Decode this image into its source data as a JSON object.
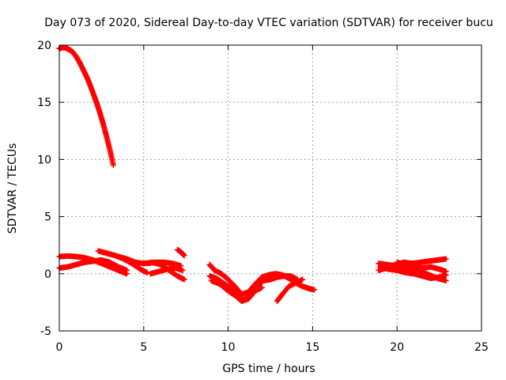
{
  "chart_data": {
    "type": "scatter",
    "title": "Day 073 of 2020, Sidereal Day-to-day VTEC variation (SDTVAR) for receiver bucu",
    "xlabel": "GPS time / hours",
    "ylabel": "SDTVAR / TECUs",
    "xlim": [
      0,
      25
    ],
    "ylim": [
      -5,
      20
    ],
    "xticks": [
      0,
      5,
      10,
      15,
      20,
      25
    ],
    "yticks": [
      -5,
      0,
      5,
      10,
      15,
      20
    ],
    "grid": true,
    "marker": "plus",
    "series_color": "#ff0000",
    "series": [
      {
        "name": "arc-early-decline",
        "points": [
          [
            0.0,
            19.7
          ],
          [
            0.2,
            19.8
          ],
          [
            0.4,
            19.75
          ],
          [
            0.6,
            19.6
          ],
          [
            0.8,
            19.4
          ],
          [
            1.0,
            19.0
          ],
          [
            1.2,
            18.5
          ],
          [
            1.4,
            17.9
          ],
          [
            1.6,
            17.3
          ],
          [
            1.8,
            16.6
          ],
          [
            2.0,
            15.8
          ],
          [
            2.2,
            15.0
          ],
          [
            2.4,
            14.1
          ],
          [
            2.6,
            13.1
          ],
          [
            2.8,
            12.0
          ],
          [
            3.0,
            10.8
          ],
          [
            3.2,
            9.5
          ]
        ]
      },
      {
        "name": "arc-morning-a",
        "points": [
          [
            0.0,
            1.5
          ],
          [
            0.5,
            1.55
          ],
          [
            1.0,
            1.5
          ],
          [
            1.5,
            1.4
          ],
          [
            2.0,
            1.2
          ],
          [
            2.5,
            0.9
          ],
          [
            3.0,
            0.6
          ],
          [
            3.5,
            0.3
          ],
          [
            4.0,
            0.0
          ]
        ]
      },
      {
        "name": "arc-morning-b",
        "points": [
          [
            0.0,
            0.5
          ],
          [
            0.5,
            0.6
          ],
          [
            1.0,
            0.8
          ],
          [
            1.5,
            1.0
          ],
          [
            2.0,
            1.1
          ],
          [
            2.5,
            1.2
          ],
          [
            3.0,
            1.0
          ],
          [
            3.5,
            0.6
          ],
          [
            4.0,
            0.3
          ]
        ]
      },
      {
        "name": "arc-morning-c",
        "points": [
          [
            2.3,
            2.0
          ],
          [
            2.8,
            1.8
          ],
          [
            3.3,
            1.6
          ],
          [
            3.8,
            1.3
          ],
          [
            4.3,
            0.9
          ],
          [
            4.8,
            0.4
          ],
          [
            5.2,
            0.1
          ]
        ]
      },
      {
        "name": "arc-morning-d",
        "points": [
          [
            3.5,
            1.5
          ],
          [
            4.0,
            1.3
          ],
          [
            4.5,
            1.0
          ],
          [
            5.0,
            0.9
          ],
          [
            5.5,
            1.0
          ],
          [
            6.0,
            0.8
          ],
          [
            6.5,
            0.3
          ],
          [
            7.0,
            -0.2
          ],
          [
            7.4,
            -0.5
          ]
        ]
      },
      {
        "name": "arc-morning-e",
        "points": [
          [
            5.2,
            0.9
          ],
          [
            5.7,
            1.0
          ],
          [
            6.2,
            1.0
          ],
          [
            6.7,
            0.9
          ],
          [
            7.2,
            0.7
          ]
        ]
      },
      {
        "name": "arc-morning-f",
        "points": [
          [
            5.4,
            0.0
          ],
          [
            5.9,
            0.2
          ],
          [
            6.4,
            0.4
          ],
          [
            6.9,
            0.5
          ],
          [
            7.3,
            0.3
          ]
        ]
      },
      {
        "name": "arc-morning-g",
        "points": [
          [
            7.0,
            2.1
          ],
          [
            7.2,
            1.9
          ],
          [
            7.4,
            1.6
          ]
        ]
      },
      {
        "name": "arc-midday-a",
        "points": [
          [
            8.9,
            0.8
          ],
          [
            9.2,
            0.3
          ],
          [
            9.6,
            0.0
          ],
          [
            10.0,
            -0.5
          ],
          [
            10.4,
            -1.1
          ],
          [
            10.8,
            -1.8
          ],
          [
            11.2,
            -1.6
          ],
          [
            11.6,
            -0.9
          ],
          [
            12.0,
            -0.3
          ],
          [
            12.4,
            -0.1
          ],
          [
            12.8,
            0.0
          ],
          [
            13.2,
            -0.1
          ],
          [
            13.6,
            -0.4
          ],
          [
            14.0,
            -0.8
          ],
          [
            14.4,
            -1.1
          ],
          [
            14.8,
            -1.3
          ],
          [
            15.1,
            -1.4
          ]
        ]
      },
      {
        "name": "arc-midday-b",
        "points": [
          [
            8.9,
            -0.2
          ],
          [
            9.3,
            -0.4
          ],
          [
            9.7,
            -0.8
          ],
          [
            10.1,
            -1.2
          ],
          [
            10.5,
            -1.8
          ],
          [
            10.9,
            -2.3
          ],
          [
            11.3,
            -1.9
          ],
          [
            11.7,
            -1.0
          ],
          [
            12.1,
            -0.6
          ],
          [
            12.5,
            -0.5
          ],
          [
            12.9,
            -0.3
          ],
          [
            13.3,
            -0.2
          ],
          [
            13.7,
            -0.2
          ],
          [
            14.1,
            -0.5
          ]
        ]
      },
      {
        "name": "arc-midday-c",
        "points": [
          [
            9.0,
            -0.6
          ],
          [
            9.5,
            -0.9
          ],
          [
            10.0,
            -1.5
          ],
          [
            10.5,
            -2.0
          ],
          [
            10.8,
            -2.4
          ],
          [
            11.2,
            -2.2
          ],
          [
            11.6,
            -1.5
          ],
          [
            12.0,
            -1.2
          ]
        ]
      },
      {
        "name": "arc-midday-d",
        "points": [
          [
            12.9,
            -2.4
          ],
          [
            13.2,
            -1.8
          ],
          [
            13.6,
            -1.1
          ],
          [
            14.0,
            -0.8
          ],
          [
            14.4,
            -0.5
          ]
        ]
      },
      {
        "name": "arc-evening-a",
        "points": [
          [
            18.9,
            0.9
          ],
          [
            19.4,
            0.8
          ],
          [
            19.9,
            0.7
          ],
          [
            20.4,
            0.6
          ],
          [
            20.9,
            0.4
          ],
          [
            21.4,
            0.2
          ],
          [
            21.9,
            -0.1
          ],
          [
            22.4,
            -0.4
          ],
          [
            22.9,
            -0.6
          ]
        ]
      },
      {
        "name": "arc-evening-b",
        "points": [
          [
            18.9,
            0.3
          ],
          [
            19.4,
            0.5
          ],
          [
            19.9,
            0.8
          ],
          [
            20.4,
            1.0
          ],
          [
            20.9,
            0.9
          ],
          [
            21.4,
            1.0
          ],
          [
            21.9,
            1.1
          ],
          [
            22.4,
            1.2
          ],
          [
            22.9,
            1.3
          ]
        ]
      },
      {
        "name": "arc-evening-c",
        "points": [
          [
            19.0,
            0.6
          ],
          [
            19.5,
            0.4
          ],
          [
            20.0,
            0.3
          ],
          [
            20.5,
            0.1
          ],
          [
            21.0,
            0.0
          ],
          [
            21.5,
            -0.2
          ],
          [
            22.0,
            -0.4
          ],
          [
            22.5,
            -0.3
          ],
          [
            22.9,
            -0.1
          ]
        ]
      },
      {
        "name": "arc-evening-d",
        "points": [
          [
            20.0,
            1.0
          ],
          [
            20.5,
            0.8
          ],
          [
            21.0,
            0.6
          ],
          [
            21.5,
            0.5
          ],
          [
            22.0,
            0.6
          ],
          [
            22.5,
            0.4
          ],
          [
            22.9,
            0.2
          ]
        ]
      }
    ]
  }
}
